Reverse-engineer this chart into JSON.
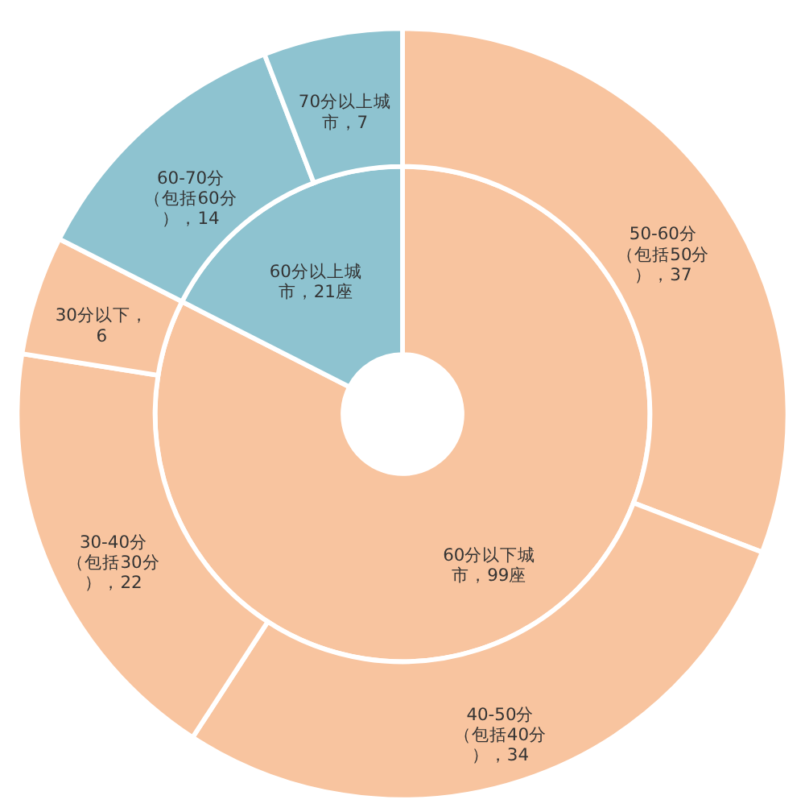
{
  "chart_data": {
    "type": "donut",
    "categories": [
      "60分以下城市",
      "60分以上城市",
      "50-60分（包括50分）",
      "40-50分（包括40分）",
      "30-40分（包括30分）",
      "30分以下",
      "60-70分（包括60分）",
      "70分以上城市"
    ],
    "colors": [
      "#f8c49f",
      "#8ec3d0",
      "#f8c49f",
      "#f8c49f",
      "#f8c49f",
      "#f8c49f",
      "#8ec3d0",
      "#8ec3d0"
    ],
    "series": [
      {
        "values": [
          99,
          21,
          null,
          null,
          null,
          null,
          null,
          null
        ],
        "value_labels": [
          "，99座",
          "，21座",
          null,
          null,
          null,
          null,
          null,
          null
        ]
      },
      {
        "values": [
          null,
          null,
          37,
          34,
          22,
          6,
          14,
          7
        ],
        "value_labels": [
          null,
          null,
          "，37",
          "，34",
          "，22",
          "，6",
          "，14",
          "，7"
        ]
      }
    ]
  }
}
